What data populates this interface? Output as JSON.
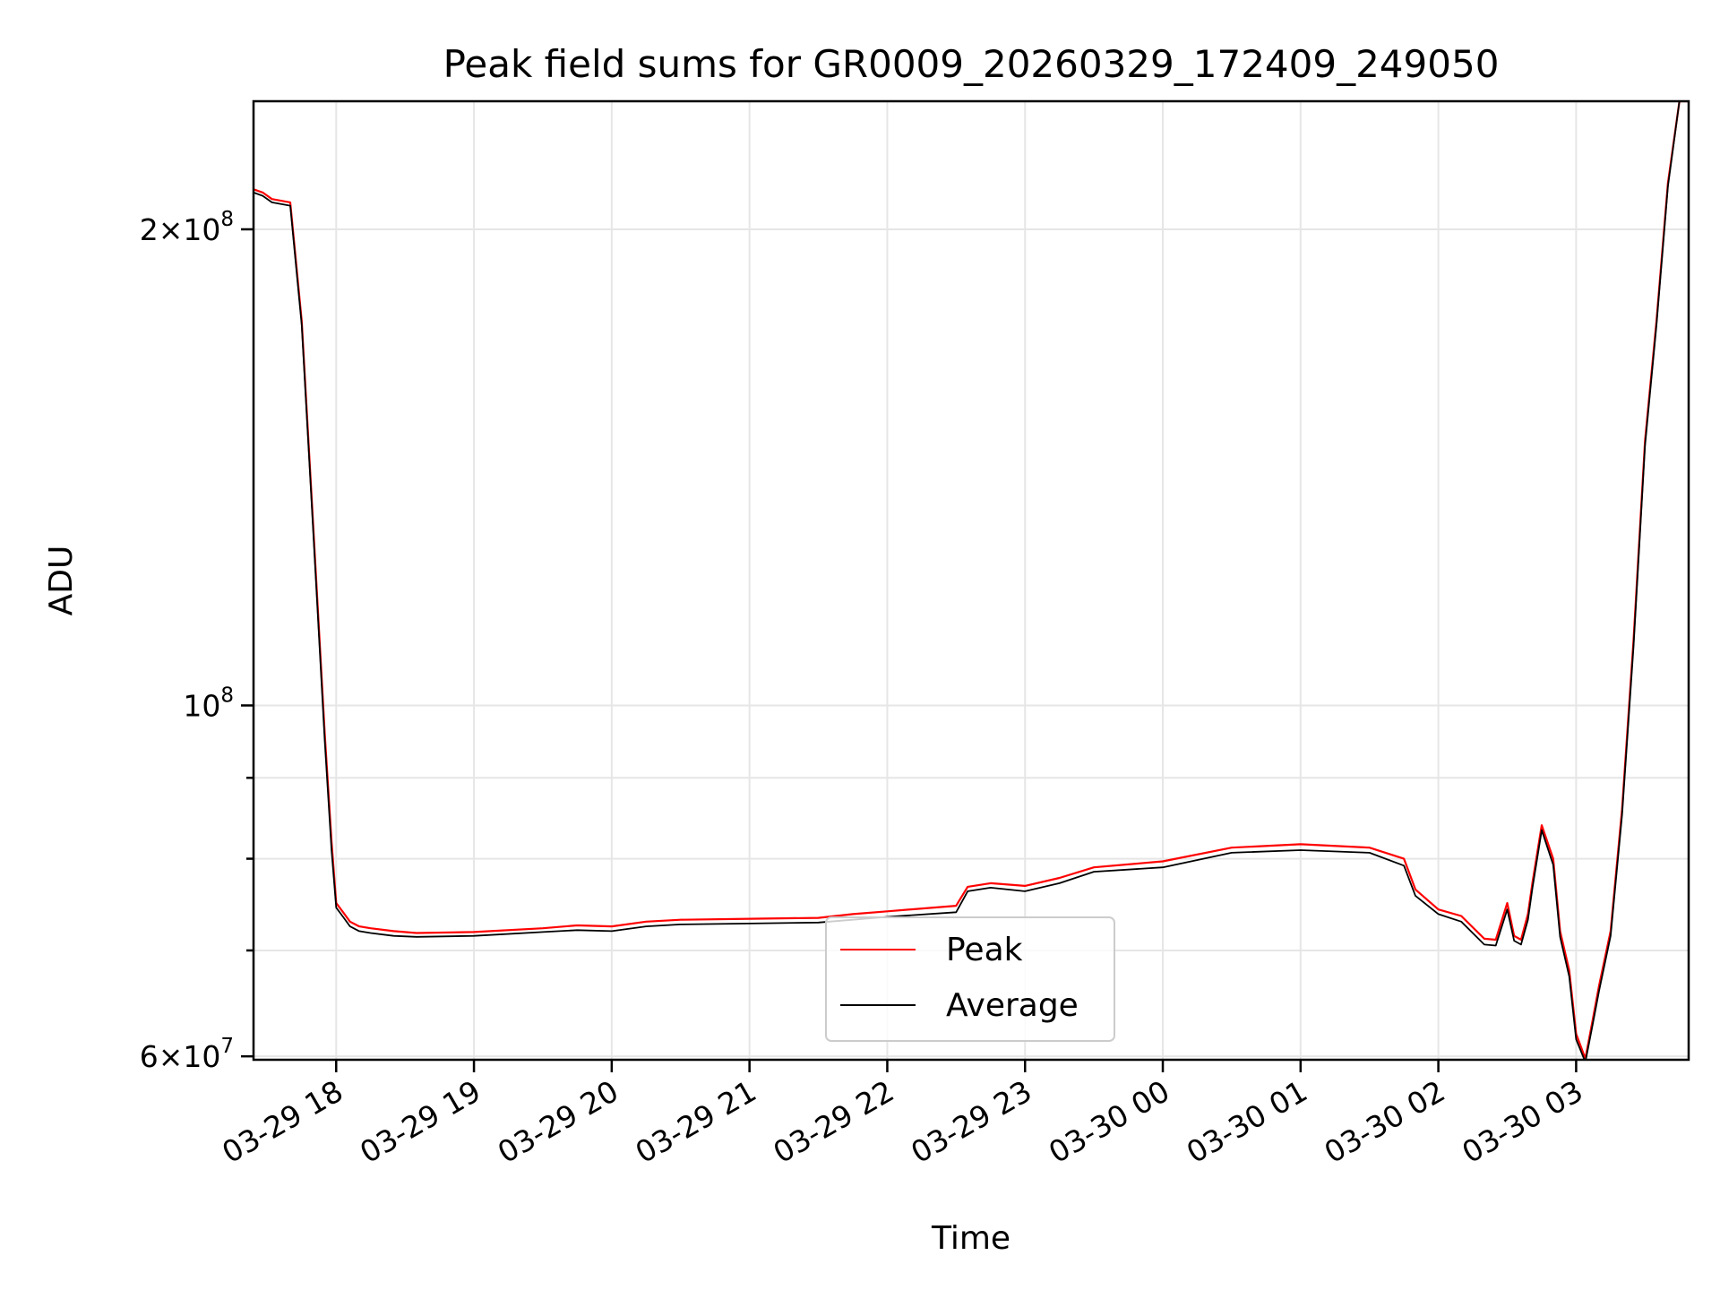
{
  "chart_data": {
    "type": "line",
    "title": "Peak field sums for GR0009_20260329_172409_249050",
    "xlabel": "Time",
    "ylabel": "ADU",
    "yscale": "log",
    "grid": true,
    "legend_position": "lower-center",
    "xlim": [
      "2026-03-29 17:24",
      "2026-03-30 03:49"
    ],
    "ylim": [
      59700000,
      241000000
    ],
    "x_ticks": [
      {
        "value": "2026-03-29 18:00",
        "label": "03-29 18"
      },
      {
        "value": "2026-03-29 19:00",
        "label": "03-29 19"
      },
      {
        "value": "2026-03-29 20:00",
        "label": "03-29 20"
      },
      {
        "value": "2026-03-29 21:00",
        "label": "03-29 21"
      },
      {
        "value": "2026-03-29 22:00",
        "label": "03-29 22"
      },
      {
        "value": "2026-03-29 23:00",
        "label": "03-29 23"
      },
      {
        "value": "2026-03-30 00:00",
        "label": "03-30 00"
      },
      {
        "value": "2026-03-30 01:00",
        "label": "03-30 01"
      },
      {
        "value": "2026-03-30 02:00",
        "label": "03-30 02"
      },
      {
        "value": "2026-03-30 03:00",
        "label": "03-30 03"
      }
    ],
    "y_ticks_major": [
      {
        "value": 200000000,
        "mantissa": "2",
        "exponent": "8"
      },
      {
        "value": 100000000,
        "mantissa": "",
        "exponent": "8"
      },
      {
        "value": 60000000,
        "mantissa": "6",
        "exponent": "7"
      }
    ],
    "y_ticks_minor": [
      70000000,
      80000000,
      90000000
    ],
    "series": [
      {
        "name": "Peak",
        "color": "#ff0000",
        "x": [
          "2026-03-29 17:24",
          "2026-03-29 17:28",
          "2026-03-29 17:32",
          "2026-03-29 17:40",
          "2026-03-29 17:45",
          "2026-03-29 17:50",
          "2026-03-29 17:55",
          "2026-03-29 17:58",
          "2026-03-29 18:00",
          "2026-03-29 18:03",
          "2026-03-29 18:06",
          "2026-03-29 18:10",
          "2026-03-29 18:15",
          "2026-03-29 18:25",
          "2026-03-29 18:35",
          "2026-03-29 19:00",
          "2026-03-29 19:30",
          "2026-03-29 19:45",
          "2026-03-29 20:00",
          "2026-03-29 20:15",
          "2026-03-29 20:30",
          "2026-03-29 21:00",
          "2026-03-29 21:30",
          "2026-03-29 21:45",
          "2026-03-29 22:00",
          "2026-03-29 22:30",
          "2026-03-29 22:35",
          "2026-03-29 22:45",
          "2026-03-29 23:00",
          "2026-03-29 23:15",
          "2026-03-29 23:30",
          "2026-03-30 00:00",
          "2026-03-30 00:30",
          "2026-03-30 01:00",
          "2026-03-30 01:30",
          "2026-03-30 01:45",
          "2026-03-30 01:50",
          "2026-03-30 02:00",
          "2026-03-30 02:10",
          "2026-03-30 02:20",
          "2026-03-30 02:25",
          "2026-03-30 02:30",
          "2026-03-30 02:33",
          "2026-03-30 02:36",
          "2026-03-30 02:39",
          "2026-03-30 02:41",
          "2026-03-30 02:45",
          "2026-03-30 02:50",
          "2026-03-30 02:53",
          "2026-03-30 02:57",
          "2026-03-30 03:00",
          "2026-03-30 03:04",
          "2026-03-30 03:07",
          "2026-03-30 03:10",
          "2026-03-30 03:15",
          "2026-03-30 03:20",
          "2026-03-30 03:25",
          "2026-03-30 03:30",
          "2026-03-30 03:35",
          "2026-03-30 03:40",
          "2026-03-30 03:45",
          "2026-03-30 03:49"
        ],
        "y": [
          212000000,
          211000000,
          209000000,
          208000000,
          175000000,
          130000000,
          96000000,
          82000000,
          75000000,
          74000000,
          73000000,
          72500000,
          72300000,
          72000000,
          71800000,
          71900000,
          72300000,
          72600000,
          72500000,
          73000000,
          73200000,
          73300000,
          73400000,
          73800000,
          74100000,
          74700000,
          76800000,
          77200000,
          76900000,
          77800000,
          79000000,
          79700000,
          81300000,
          81700000,
          81300000,
          80000000,
          76500000,
          74300000,
          73600000,
          71200000,
          71100000,
          75000000,
          71500000,
          71100000,
          73800000,
          77300000,
          84000000,
          80000000,
          72000000,
          68000000,
          62000000,
          59800000,
          63000000,
          66500000,
          72000000,
          86000000,
          110000000,
          147000000,
          175000000,
          214000000,
          241000000,
          241000000
        ]
      },
      {
        "name": "Average",
        "color": "#000000",
        "x": [
          "2026-03-29 17:24",
          "2026-03-29 17:28",
          "2026-03-29 17:32",
          "2026-03-29 17:40",
          "2026-03-29 17:45",
          "2026-03-29 17:50",
          "2026-03-29 17:55",
          "2026-03-29 17:58",
          "2026-03-29 18:00",
          "2026-03-29 18:03",
          "2026-03-29 18:06",
          "2026-03-29 18:10",
          "2026-03-29 18:15",
          "2026-03-29 18:25",
          "2026-03-29 18:35",
          "2026-03-29 19:00",
          "2026-03-29 19:30",
          "2026-03-29 19:45",
          "2026-03-29 20:00",
          "2026-03-29 20:15",
          "2026-03-29 20:30",
          "2026-03-29 21:00",
          "2026-03-29 21:30",
          "2026-03-29 21:45",
          "2026-03-29 22:00",
          "2026-03-29 22:30",
          "2026-03-29 22:35",
          "2026-03-29 22:45",
          "2026-03-29 23:00",
          "2026-03-29 23:15",
          "2026-03-29 23:30",
          "2026-03-30 00:00",
          "2026-03-30 00:30",
          "2026-03-30 01:00",
          "2026-03-30 01:30",
          "2026-03-30 01:45",
          "2026-03-30 01:50",
          "2026-03-30 02:00",
          "2026-03-30 02:10",
          "2026-03-30 02:20",
          "2026-03-30 02:25",
          "2026-03-30 02:30",
          "2026-03-30 02:33",
          "2026-03-30 02:36",
          "2026-03-30 02:39",
          "2026-03-30 02:41",
          "2026-03-30 02:45",
          "2026-03-30 02:50",
          "2026-03-30 02:53",
          "2026-03-30 02:57",
          "2026-03-30 03:00",
          "2026-03-30 03:04",
          "2026-03-30 03:07",
          "2026-03-30 03:10",
          "2026-03-30 03:15",
          "2026-03-30 03:20",
          "2026-03-30 03:25",
          "2026-03-30 03:30",
          "2026-03-30 03:35",
          "2026-03-30 03:40",
          "2026-03-30 03:45",
          "2026-03-30 03:49"
        ],
        "y": [
          211000000,
          210000000,
          208000000,
          207000000,
          174000000,
          129000000,
          95000000,
          81000000,
          74500000,
          73500000,
          72500000,
          72000000,
          71800000,
          71500000,
          71400000,
          71500000,
          71900000,
          72100000,
          72000000,
          72500000,
          72700000,
          72800000,
          72900000,
          73200000,
          73500000,
          74000000,
          76300000,
          76700000,
          76300000,
          77200000,
          78500000,
          79000000,
          80700000,
          81000000,
          80700000,
          79200000,
          75800000,
          73800000,
          73000000,
          70600000,
          70500000,
          74300000,
          71000000,
          70600000,
          73200000,
          76700000,
          83400000,
          79300000,
          71400000,
          67400000,
          61500000,
          59500000,
          62600000,
          66000000,
          71500000,
          85300000,
          109000000,
          146000000,
          174000000,
          213000000,
          241000000,
          241000000
        ]
      }
    ]
  }
}
